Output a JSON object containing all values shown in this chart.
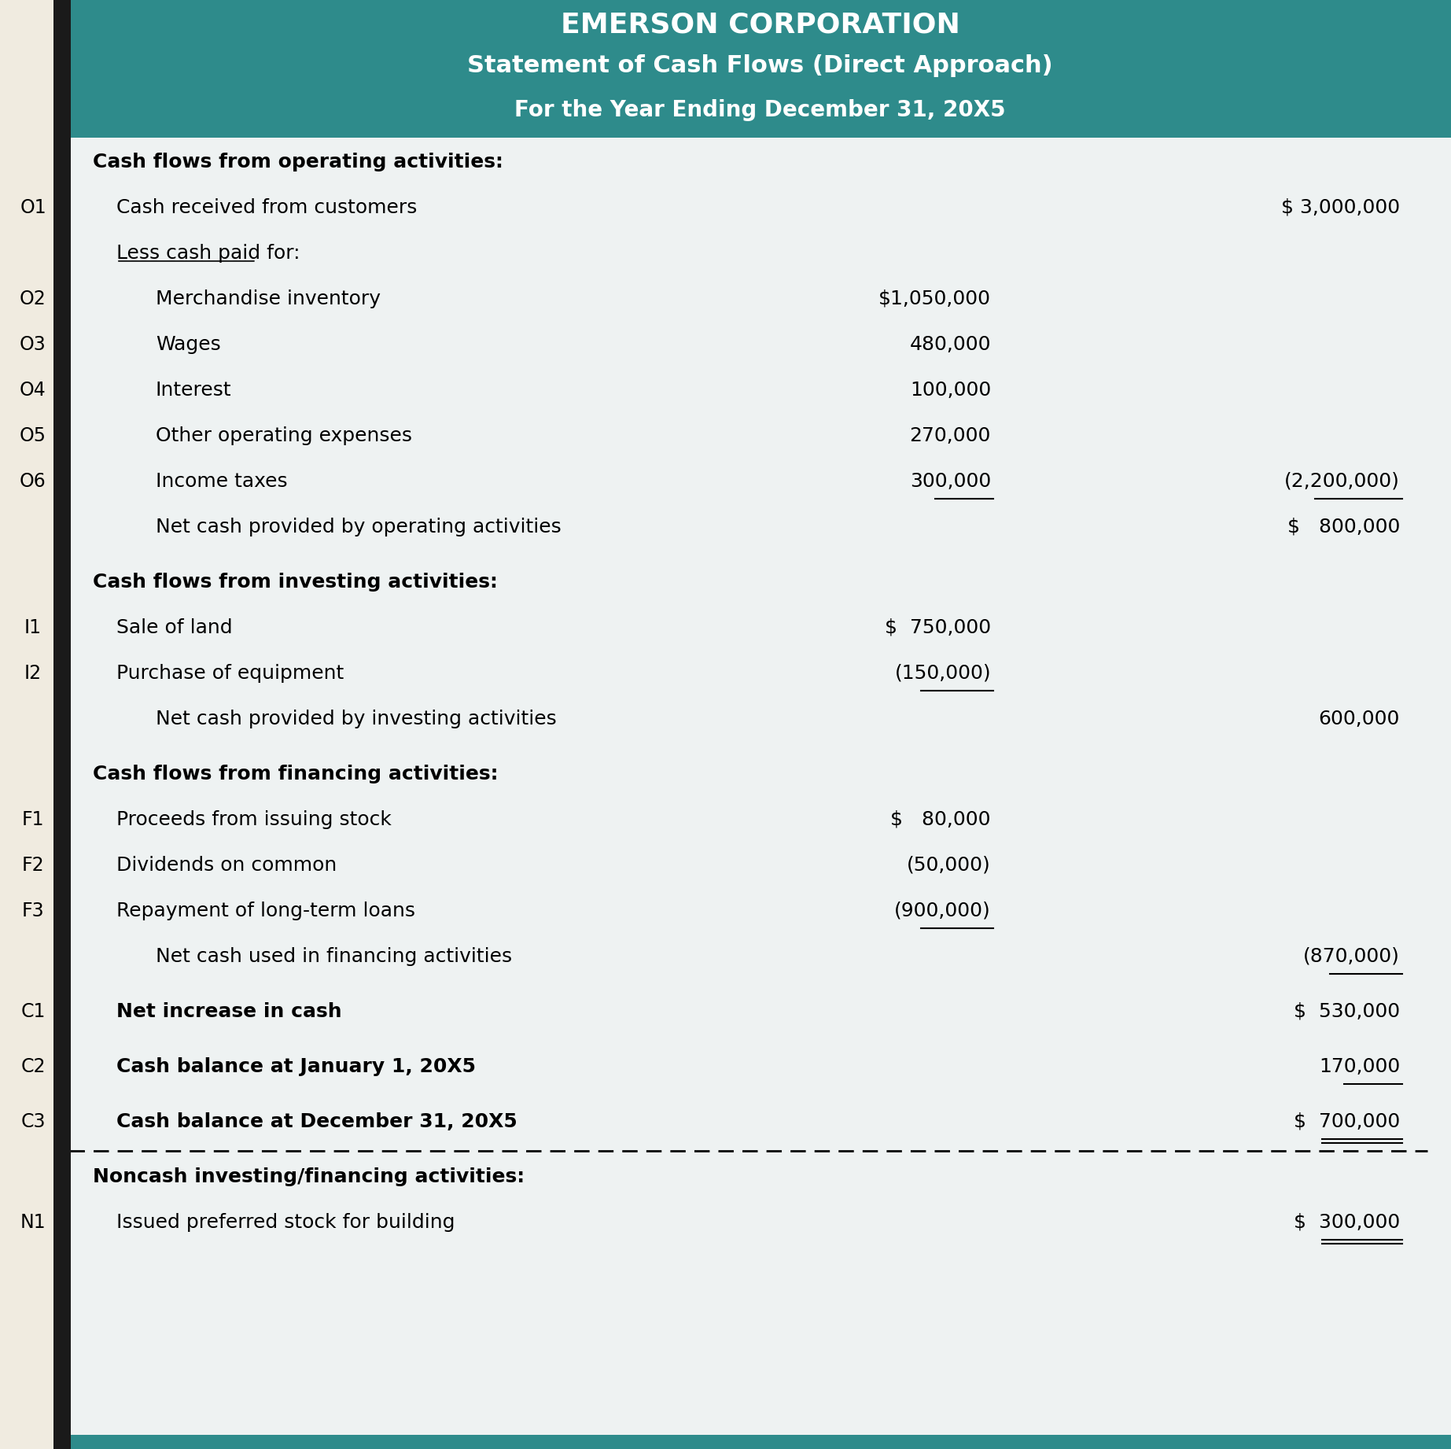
{
  "title_line1": "EMERSON CORPORATION",
  "title_line2": "Statement of Cash Flows (Direct Approach)",
  "title_line3": "For the Year Ending December 31, 20X5",
  "header_bg": "#2E8B8B",
  "header_text_color": "#FFFFFF",
  "body_bg": "#EEF2F2",
  "left_strip_bg": "#F0EBE0",
  "left_bar_color": "#1a1a1a",
  "rows": [
    {
      "label": "Cash flows from operating activities:",
      "indent": 0,
      "bold": true,
      "col1": "",
      "col2": "",
      "ul1": false,
      "ul2": false,
      "left_lbl": ""
    },
    {
      "label": "Cash received from customers",
      "indent": 1,
      "bold": false,
      "col1": "",
      "col2": "$ 3,000,000",
      "ul1": false,
      "ul2": false,
      "left_lbl": "O1"
    },
    {
      "label": "Less cash paid for:",
      "indent": 1,
      "bold": false,
      "col1": "",
      "col2": "",
      "ul1": false,
      "ul2": false,
      "left_lbl": "",
      "ul_label": true
    },
    {
      "label": "Merchandise inventory",
      "indent": 2,
      "bold": false,
      "col1": "$1,050,000",
      "col2": "",
      "ul1": false,
      "ul2": false,
      "left_lbl": "O2"
    },
    {
      "label": "Wages",
      "indent": 2,
      "bold": false,
      "col1": "480,000",
      "col2": "",
      "ul1": false,
      "ul2": false,
      "left_lbl": "O3"
    },
    {
      "label": "Interest",
      "indent": 2,
      "bold": false,
      "col1": "100,000",
      "col2": "",
      "ul1": false,
      "ul2": false,
      "left_lbl": "O4"
    },
    {
      "label": "Other operating expenses",
      "indent": 2,
      "bold": false,
      "col1": "270,000",
      "col2": "",
      "ul1": false,
      "ul2": false,
      "left_lbl": "O5"
    },
    {
      "label": "Income taxes",
      "indent": 2,
      "bold": false,
      "col1": "300,000",
      "col2": "(2,200,000)",
      "ul1": true,
      "ul2": true,
      "left_lbl": "O6"
    },
    {
      "label": "Net cash provided by operating activities",
      "indent": 2,
      "bold": false,
      "col1": "",
      "col2": "$   800,000",
      "ul1": false,
      "ul2": false,
      "left_lbl": ""
    },
    {
      "label": "",
      "indent": 0,
      "bold": false,
      "col1": "",
      "col2": "",
      "ul1": false,
      "ul2": false,
      "left_lbl": "",
      "spacer": true
    },
    {
      "label": "Cash flows from investing activities:",
      "indent": 0,
      "bold": true,
      "col1": "",
      "col2": "",
      "ul1": false,
      "ul2": false,
      "left_lbl": ""
    },
    {
      "label": "Sale of land",
      "indent": 1,
      "bold": false,
      "col1": "$  750,000",
      "col2": "",
      "ul1": false,
      "ul2": false,
      "left_lbl": "I1"
    },
    {
      "label": "Purchase of equipment",
      "indent": 1,
      "bold": false,
      "col1": "(150,000)",
      "col2": "",
      "ul1": true,
      "ul2": false,
      "left_lbl": "I2"
    },
    {
      "label": "Net cash provided by investing activities",
      "indent": 2,
      "bold": false,
      "col1": "",
      "col2": "600,000",
      "ul1": false,
      "ul2": false,
      "left_lbl": ""
    },
    {
      "label": "",
      "indent": 0,
      "bold": false,
      "col1": "",
      "col2": "",
      "ul1": false,
      "ul2": false,
      "left_lbl": "",
      "spacer": true
    },
    {
      "label": "Cash flows from financing activities:",
      "indent": 0,
      "bold": true,
      "col1": "",
      "col2": "",
      "ul1": false,
      "ul2": false,
      "left_lbl": ""
    },
    {
      "label": "Proceeds from issuing stock",
      "indent": 1,
      "bold": false,
      "col1": "$   80,000",
      "col2": "",
      "ul1": false,
      "ul2": false,
      "left_lbl": "F1"
    },
    {
      "label": "Dividends on common",
      "indent": 1,
      "bold": false,
      "col1": "(50,000)",
      "col2": "",
      "ul1": false,
      "ul2": false,
      "left_lbl": "F2"
    },
    {
      "label": "Repayment of long-term loans",
      "indent": 1,
      "bold": false,
      "col1": "(900,000)",
      "col2": "",
      "ul1": true,
      "ul2": false,
      "left_lbl": "F3"
    },
    {
      "label": "Net cash used in financing activities",
      "indent": 2,
      "bold": false,
      "col1": "",
      "col2": "(870,000)",
      "ul1": false,
      "ul2": true,
      "left_lbl": ""
    },
    {
      "label": "",
      "indent": 0,
      "bold": false,
      "col1": "",
      "col2": "",
      "ul1": false,
      "ul2": false,
      "left_lbl": "",
      "spacer": true
    },
    {
      "label": "Net increase in cash",
      "indent": 1,
      "bold": true,
      "col1": "",
      "col2": "$  530,000",
      "ul1": false,
      "ul2": false,
      "left_lbl": "C1"
    },
    {
      "label": "",
      "indent": 0,
      "bold": false,
      "col1": "",
      "col2": "",
      "ul1": false,
      "ul2": false,
      "left_lbl": "",
      "spacer": true
    },
    {
      "label": "Cash balance at January 1, 20X5",
      "indent": 1,
      "bold": true,
      "col1": "",
      "col2": "170,000",
      "ul1": false,
      "ul2": true,
      "left_lbl": "C2"
    },
    {
      "label": "",
      "indent": 0,
      "bold": false,
      "col1": "",
      "col2": "",
      "ul1": false,
      "ul2": false,
      "left_lbl": "",
      "spacer": true
    },
    {
      "label": "Cash balance at December 31, 20X5",
      "indent": 1,
      "bold": true,
      "col1": "",
      "col2": "$  700,000",
      "ul1": false,
      "ul2": true,
      "left_lbl": "C3",
      "double_ul2": true
    }
  ],
  "noncash_rows": [
    {
      "label": "Noncash investing/financing activities:",
      "indent": 0,
      "bold": true,
      "col1": "",
      "col2": "",
      "ul1": false,
      "ul2": false,
      "left_lbl": ""
    },
    {
      "label": "Issued preferred stock for building",
      "indent": 1,
      "bold": false,
      "col1": "",
      "col2": "$  300,000",
      "ul1": false,
      "ul2": true,
      "left_lbl": "N1",
      "double_ul2": true
    }
  ]
}
